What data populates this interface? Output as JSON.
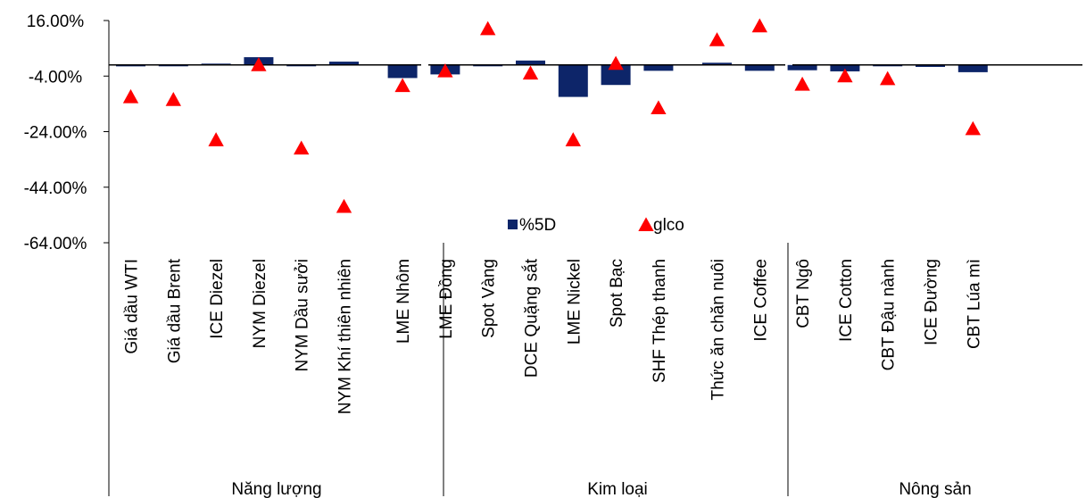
{
  "chart_data": {
    "type": "bar",
    "title": "",
    "xlabel": "",
    "ylabel": "",
    "ylim": [
      -64,
      16
    ],
    "yticks": [
      16,
      -4,
      -24,
      -44,
      -64
    ],
    "ytick_labels": [
      "16.00%",
      "-4.00%",
      "-24.00%",
      "-44.00%",
      "-64.00%"
    ],
    "grid": false,
    "legend_position": "bottom-center",
    "groups": [
      {
        "name": "Năng lượng",
        "categories": [
          "Giá dầu WTI",
          "Giá dầu Brent",
          "ICE Diezel",
          "NYM Diezel",
          "NYM Dầu sưởi",
          "NYM Khí thiên nhiên"
        ]
      },
      {
        "name": "Kim loại",
        "categories": [
          "LME Nhôm",
          "LME Đồng",
          "Spot Vàng",
          "DCE Quặng sắt",
          "LME Nickel",
          "Spot Bạc",
          "SHF Thép thanh"
        ]
      },
      {
        "name": "Nông sản",
        "categories": [
          "Thức ăn chăn nuôi",
          "ICE Coffee",
          "CBT Ngô",
          "ICE Cotton",
          "CBT Đậu nành",
          "ICE Đường",
          "CBT Lúa mì"
        ]
      }
    ],
    "categories": [
      "Giá dầu WTI",
      "Giá dầu Brent",
      "ICE Diezel",
      "NYM Diezel",
      "NYM Dầu sưởi",
      "NYM Khí thiên nhiên",
      "LME Nhôm",
      "LME Đồng",
      "Spot Vàng",
      "DCE Quặng sắt",
      "LME Nickel",
      "Spot Bạc",
      "SHF Thép thanh",
      "Thức ăn chăn nuôi",
      "ICE Coffee",
      "CBT Ngô",
      "ICE Cotton",
      "CBT Đậu nành",
      "ICE Đường",
      "CBT Lúa mì"
    ],
    "series": [
      {
        "name": "%5D",
        "kind": "bar",
        "color": "#0d2569",
        "values": [
          -0.5,
          -0.4,
          0,
          2.8,
          -0.3,
          1.2,
          -4.7,
          -3.4,
          -0.4,
          1.6,
          -11.5,
          -7.2,
          -2.1,
          0.8,
          -2.1,
          -1.9,
          -2.3,
          -0.2,
          -0.7,
          -2.6
        ]
      },
      {
        "name": "glco",
        "kind": "marker",
        "marker": "triangle",
        "color": "#ff0000",
        "values": [
          -11.5,
          -12.5,
          -27,
          0,
          -30,
          -51,
          -7.5,
          -2.2,
          13,
          -3,
          -27,
          0.5,
          -15.5,
          9,
          14,
          -7,
          -4,
          -5,
          null,
          -23
        ]
      }
    ]
  }
}
